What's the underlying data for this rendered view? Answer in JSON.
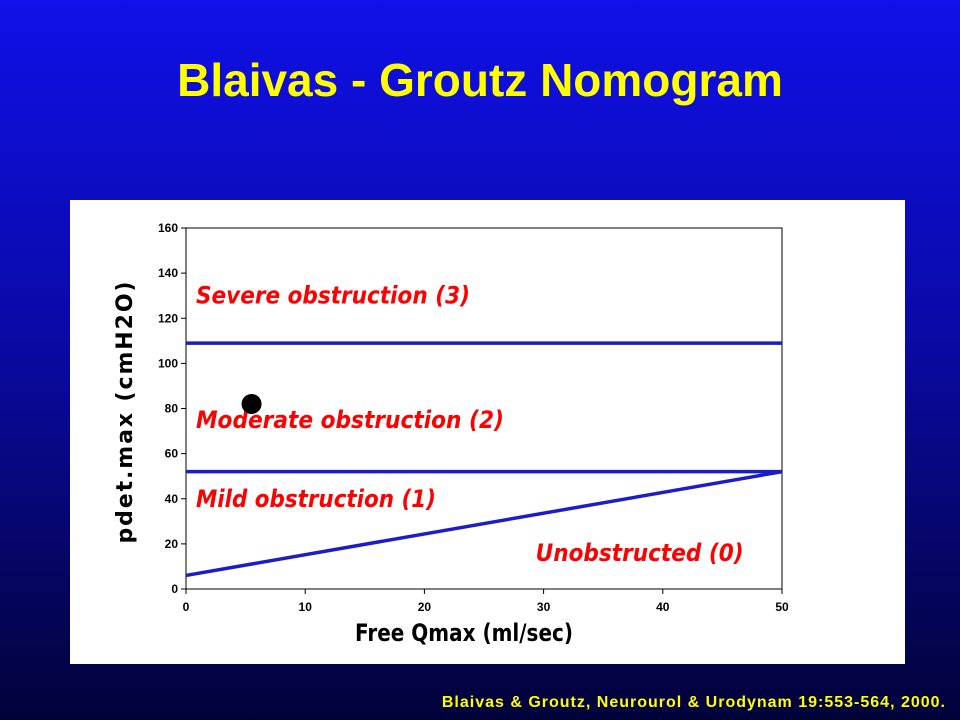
{
  "slide": {
    "title": "Blaivas - Groutz Nomogram",
    "citation": "Blaivas & Groutz, Neurourol & Urodynam 19:553-564, 2000."
  },
  "colors": {
    "background": "#0a0aa8",
    "title": "#ffff00",
    "line": "#1c1cc8",
    "zone_label": "#ff0000",
    "point": "#000000"
  },
  "chart_data": {
    "type": "line",
    "title": "",
    "xlabel": "Free Qmax (ml/sec)",
    "ylabel": "pdet.max (cmH2O)",
    "xlim": [
      0,
      50
    ],
    "ylim": [
      0,
      160
    ],
    "xticks": [
      0,
      10,
      20,
      30,
      40,
      50
    ],
    "yticks": [
      0,
      20,
      40,
      60,
      80,
      100,
      120,
      140,
      160
    ],
    "grid": false,
    "lines": [
      {
        "id": "severe-boundary",
        "points": [
          [
            0,
            109
          ],
          [
            50,
            109
          ]
        ]
      },
      {
        "id": "mild-moderate-boundary",
        "points": [
          [
            0,
            52
          ],
          [
            50,
            52
          ]
        ]
      },
      {
        "id": "unobstructed-boundary",
        "points": [
          [
            0,
            6
          ],
          [
            50,
            52
          ]
        ]
      }
    ],
    "points": [
      {
        "x": 5.5,
        "y": 82
      }
    ],
    "zone_labels": [
      {
        "text": "Severe obstruction (3)",
        "x": 0.5,
        "y": 130
      },
      {
        "text": "Moderate obstruction (2)",
        "x": 0.5,
        "y": 75
      },
      {
        "text": "Mild obstruction (1)",
        "x": 0.5,
        "y": 40
      },
      {
        "text": "Unobstructed (0)",
        "x": 29,
        "y": 16
      }
    ]
  }
}
